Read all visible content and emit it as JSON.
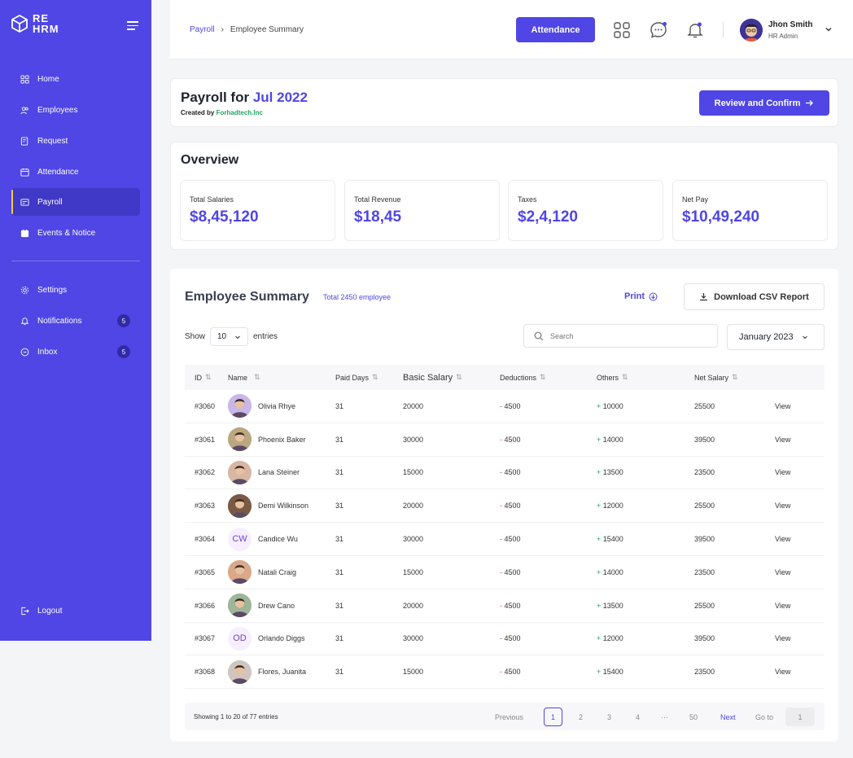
{
  "brand": {
    "line1": "RE",
    "line2": "HRM"
  },
  "sidebar": {
    "items": [
      {
        "label": "Home",
        "icon": "grid-icon"
      },
      {
        "label": "Employees",
        "icon": "users-icon"
      },
      {
        "label": "Request",
        "icon": "request-icon"
      },
      {
        "label": "Attendance",
        "icon": "calendar-check-icon"
      },
      {
        "label": "Payroll",
        "icon": "payroll-icon",
        "active": true
      },
      {
        "label": "Events & Notice",
        "icon": "calendar-icon"
      }
    ],
    "secondary": [
      {
        "label": "Settings",
        "icon": "gear-icon"
      },
      {
        "label": "Notifications",
        "icon": "bell-icon",
        "badge": "5"
      },
      {
        "label": "Inbox",
        "icon": "chat-icon",
        "badge": "5"
      }
    ],
    "logout": "Logout"
  },
  "header": {
    "breadcrumb": {
      "parent": "Payroll",
      "sep": "›",
      "current": "Employee Summary"
    },
    "attendance_button": "Attendance",
    "user": {
      "name": "Jhon Smith",
      "role": "HR Admin"
    }
  },
  "payroll": {
    "title_prefix": "Payroll for",
    "month": "Jul 2022",
    "created_by_label": "Created by",
    "company": "Forhadtech.Inc",
    "review_button": "Review and Confirm"
  },
  "overview": {
    "title": "Overview",
    "stats": [
      {
        "label": "Total Salaries",
        "value": "$8,45,120"
      },
      {
        "label": "Total Revenue",
        "value": "$18,45"
      },
      {
        "label": "Taxes",
        "value": "$2,4,120"
      },
      {
        "label": "Net Pay",
        "value": "$10,49,240"
      }
    ]
  },
  "summary": {
    "title": "Employee Summary",
    "subtitle": "Total 2450 employee",
    "print": "Print",
    "download": "Download CSV Report",
    "show_label": "Show",
    "show_value": "10",
    "entries_label": "entries",
    "search_placeholder": "Search",
    "month_select": "January 2023",
    "columns": [
      "ID",
      "Name",
      "Paid Days",
      "Basic Salary",
      "Deductions",
      "Others",
      "Net Salary"
    ],
    "rows": [
      {
        "id": "#3060",
        "name": "Olivia Rhye",
        "initials": "",
        "days": "31",
        "basic": "20000",
        "deductions": "4500",
        "others": "10000",
        "net": "25500",
        "action": "View",
        "avatar_color": "#c9b7e8"
      },
      {
        "id": "#3061",
        "name": "Phoenix Baker",
        "initials": "",
        "days": "31",
        "basic": "30000",
        "deductions": "4500",
        "others": "14000",
        "net": "39500",
        "action": "View",
        "avatar_color": "#b9a782"
      },
      {
        "id": "#3062",
        "name": "Lana Steiner",
        "initials": "",
        "days": "31",
        "basic": "15000",
        "deductions": "4500",
        "others": "13500",
        "net": "23500",
        "action": "View",
        "avatar_color": "#d7b7a4"
      },
      {
        "id": "#3063",
        "name": "Demi Wilkinson",
        "initials": "",
        "days": "31",
        "basic": "20000",
        "deductions": "4500",
        "others": "12000",
        "net": "25500",
        "action": "View",
        "avatar_color": "#7a5a44"
      },
      {
        "id": "#3064",
        "name": "Candice Wu",
        "initials": "CW",
        "days": "31",
        "basic": "30000",
        "deductions": "4500",
        "others": "15400",
        "net": "39500",
        "action": "View",
        "avatar_color": "#f5efff"
      },
      {
        "id": "#3065",
        "name": "Natali Craig",
        "initials": "",
        "days": "31",
        "basic": "15000",
        "deductions": "4500",
        "others": "14000",
        "net": "23500",
        "action": "View",
        "avatar_color": "#d9a98a"
      },
      {
        "id": "#3066",
        "name": "Drew Cano",
        "initials": "",
        "days": "31",
        "basic": "20000",
        "deductions": "4500",
        "others": "13500",
        "net": "25500",
        "action": "View",
        "avatar_color": "#9fb59a"
      },
      {
        "id": "#3067",
        "name": "Orlando Diggs",
        "initials": "OD",
        "days": "31",
        "basic": "30000",
        "deductions": "4500",
        "others": "12000",
        "net": "39500",
        "action": "View",
        "avatar_color": "#f5efff"
      },
      {
        "id": "#3068",
        "name": "Flores, Juanita",
        "initials": "",
        "days": "31",
        "basic": "15000",
        "deductions": "4500",
        "others": "15400",
        "net": "23500",
        "action": "View",
        "avatar_color": "#cfc6c0"
      }
    ]
  },
  "pagination": {
    "info": "Showing 1 to 20 of 77 entries",
    "previous": "Previous",
    "pages": [
      "1",
      "2",
      "3",
      "4",
      "···",
      "50"
    ],
    "next": "Next",
    "goto_label": "Go to",
    "goto_value": "1"
  },
  "colors": {
    "primary": "#4f46e5",
    "positive": "#20a464",
    "negative": "#e5483d"
  }
}
